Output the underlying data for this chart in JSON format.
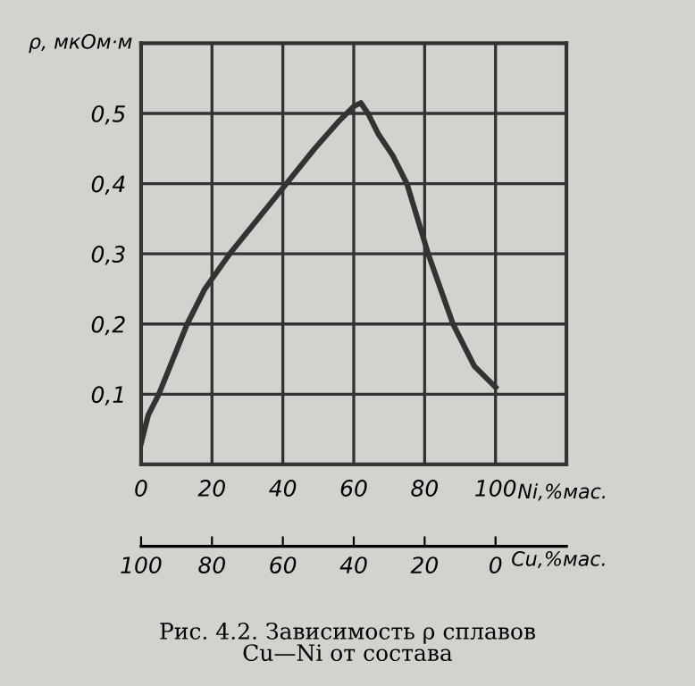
{
  "chart_data": {
    "type": "line",
    "ylabel": "ρ, мкОм·м",
    "xlabel": "Ni,%мас.",
    "x2label": "Cu,%мас.",
    "annotations": [
      "Рис. 4.2. Зависимость ρ сплавов\nCu—Ni от состава"
    ],
    "series": [
      {
        "color": "#333333",
        "x": [
          0,
          2,
          5,
          9,
          13,
          18,
          25,
          33,
          41,
          49,
          56,
          60,
          62,
          64,
          67,
          71,
          75,
          81,
          88,
          94,
          100
        ],
        "values": [
          0.03,
          0.07,
          0.1,
          0.15,
          0.2,
          0.25,
          0.3,
          0.35,
          0.4,
          0.45,
          0.49,
          0.51,
          0.515,
          0.5,
          0.47,
          0.44,
          0.4,
          0.3,
          0.2,
          0.14,
          0.11
        ]
      }
    ],
    "xlim": [
      0,
      120
    ],
    "xticks": [
      0,
      20,
      40,
      60,
      80,
      100
    ],
    "ylim": [
      0,
      0.6
    ],
    "yticks": [
      {
        "value": 0.1,
        "label": "0,1"
      },
      {
        "value": 0.2,
        "label": "0,2"
      },
      {
        "value": 0.3,
        "label": "0,3"
      },
      {
        "value": 0.4,
        "label": "0,4"
      },
      {
        "value": 0.5,
        "label": "0,5"
      }
    ],
    "x2lim": [
      100,
      -20
    ],
    "x2ticks": [
      100,
      80,
      60,
      40,
      20,
      0
    ],
    "grid": true,
    "marker": "none",
    "line_style": "solid"
  }
}
